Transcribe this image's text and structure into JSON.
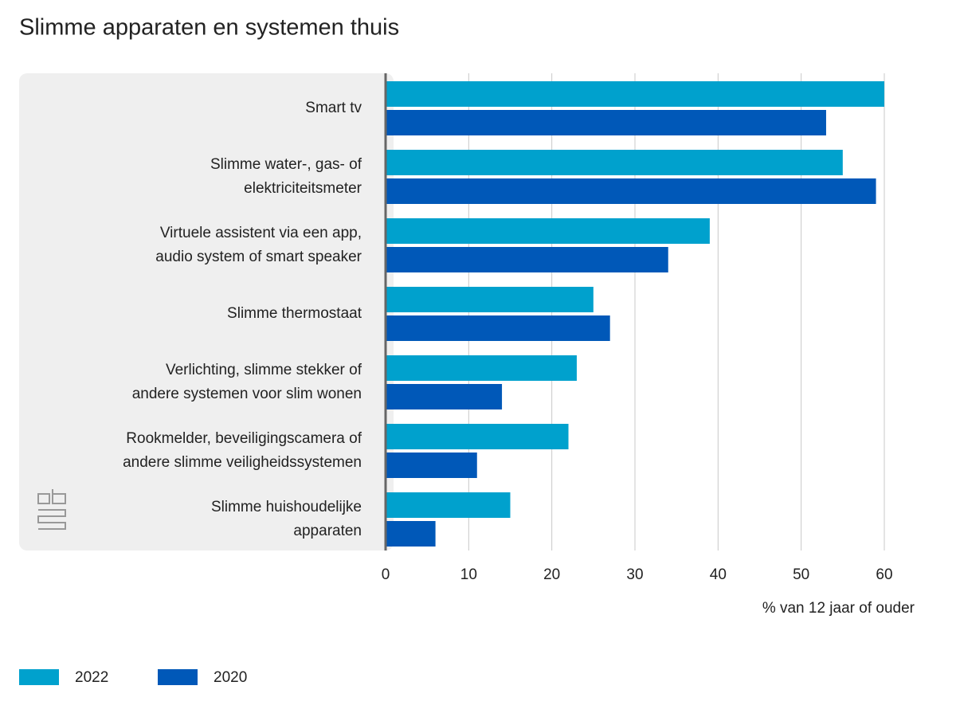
{
  "chart_data": {
    "type": "bar",
    "orientation": "horizontal",
    "title": "Slimme apparaten en systemen thuis",
    "x_label": "% van 12 jaar of ouder",
    "categories": [
      [
        "Smart tv"
      ],
      [
        "Slimme water-, gas- of",
        "elektriciteitsmeter"
      ],
      [
        "Virtuele assistent via een app,",
        "audio system of smart speaker"
      ],
      [
        "Slimme thermostaat"
      ],
      [
        "Verlichting, slimme stekker of",
        "andere systemen voor slim wonen"
      ],
      [
        "Rookmelder, beveiligingscamera of",
        "andere slimme veiligheidssystemen"
      ],
      [
        "Slimme huishoudelijke",
        "apparaten"
      ]
    ],
    "series": [
      {
        "name": "2022",
        "color": "#00a1cd",
        "values": [
          60,
          55,
          39,
          25,
          23,
          22,
          15
        ]
      },
      {
        "name": "2020",
        "color": "#0058b8",
        "values": [
          53,
          59,
          34,
          27,
          14,
          11,
          6
        ]
      }
    ],
    "xlim": [
      0,
      60
    ],
    "xticks": [
      0,
      10,
      20,
      30,
      40,
      50,
      60
    ],
    "grid": true,
    "legend": "bottom-left"
  }
}
